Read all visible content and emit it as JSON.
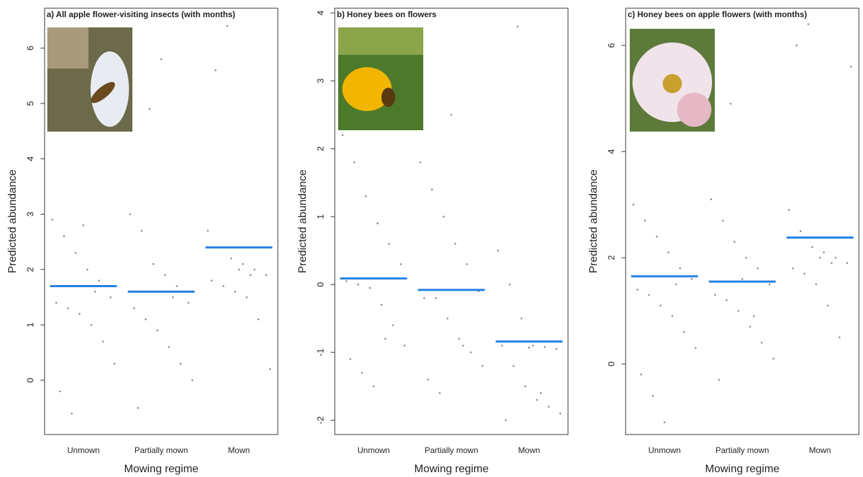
{
  "chart_data": [
    {
      "type": "strip",
      "title": "a) All apple flower-visiting insects (with months)",
      "x_label": "Mowing regime",
      "y_label": "Predicted abundance",
      "categories": [
        "Unmown",
        "Partially mown",
        "Mown"
      ],
      "values": [
        1.7,
        1.6,
        2.4
      ],
      "color": "#1e7fe0",
      "points": [
        [
          2.9,
          2.6,
          2.3,
          2.0,
          1.8,
          1.5,
          1.4,
          1.3,
          1.2,
          1.0,
          0.7,
          0.3,
          -0.2,
          -0.6,
          2.8,
          1.6
        ],
        [
          3.0,
          2.7,
          2.1,
          1.9,
          1.7,
          1.4,
          1.3,
          1.1,
          0.9,
          0.6,
          0.3,
          0.0,
          -0.5,
          4.9,
          5.8,
          1.5
        ],
        [
          2.7,
          2.4,
          2.2,
          2.1,
          2.0,
          1.9,
          1.8,
          1.7,
          1.6,
          1.5,
          1.1,
          0.2,
          5.6,
          6.4,
          2.0,
          1.9
        ]
      ],
      "point_color": "#888888",
      "ylim": [
        -0.98,
        6.72
      ],
      "yticks": [
        0,
        1,
        2,
        3,
        4,
        5,
        6
      ]
    },
    {
      "type": "strip",
      "title": "b) Honey bees on flowers",
      "x_label": "Mowing regime",
      "y_label": "Predicted abundance",
      "categories": [
        "Unmown",
        "Partially mown",
        "Mown"
      ],
      "values": [
        0.09,
        -0.08,
        -0.84
      ],
      "color": "#1e7fe0",
      "points": [
        [
          2.2,
          1.8,
          1.3,
          0.9,
          0.6,
          0.3,
          0.05,
          0.0,
          -0.05,
          -0.3,
          -0.6,
          -0.9,
          -1.1,
          -1.3,
          -1.5,
          -0.8
        ],
        [
          1.8,
          1.4,
          1.0,
          0.6,
          0.3,
          -0.1,
          -0.2,
          -0.2,
          -0.5,
          -0.8,
          -1.0,
          -1.2,
          -1.4,
          -1.6,
          2.5,
          -0.9
        ],
        [
          0.5,
          0.0,
          -0.5,
          -0.9,
          -0.92,
          -0.95,
          -0.9,
          -1.2,
          -1.5,
          -1.7,
          -1.8,
          -1.9,
          -2.0,
          3.8,
          -0.93,
          -1.6
        ]
      ],
      "point_color": "#888888",
      "ylim": [
        -2.21,
        4.07
      ],
      "yticks": [
        -2,
        -1,
        0,
        1,
        2,
        3,
        4
      ]
    },
    {
      "type": "strip",
      "title": "c) Honey bees on apple flowers (with months)",
      "x_label": "Mowing regime",
      "y_label": "Predicted abundance",
      "categories": [
        "Unmown",
        "Partially mown",
        "Mown"
      ],
      "values": [
        1.65,
        1.55,
        2.38
      ],
      "color": "#1e7fe0",
      "points": [
        [
          3.0,
          2.7,
          2.4,
          2.1,
          1.8,
          1.6,
          1.4,
          1.3,
          1.1,
          0.9,
          0.6,
          0.3,
          -0.2,
          -0.6,
          -1.1,
          1.5
        ],
        [
          3.1,
          2.7,
          2.3,
          2.0,
          1.8,
          1.5,
          1.3,
          1.2,
          1.0,
          0.7,
          0.4,
          0.1,
          -0.3,
          4.9,
          1.6,
          0.9
        ],
        [
          2.9,
          2.5,
          2.2,
          2.1,
          2.0,
          1.9,
          1.8,
          1.7,
          1.5,
          1.1,
          0.5,
          5.6,
          6.0,
          6.4,
          2.0,
          1.9
        ]
      ],
      "point_color": "#888888",
      "ylim": [
        -1.33,
        6.7
      ],
      "yticks": [
        0,
        2,
        4,
        6
      ]
    }
  ]
}
